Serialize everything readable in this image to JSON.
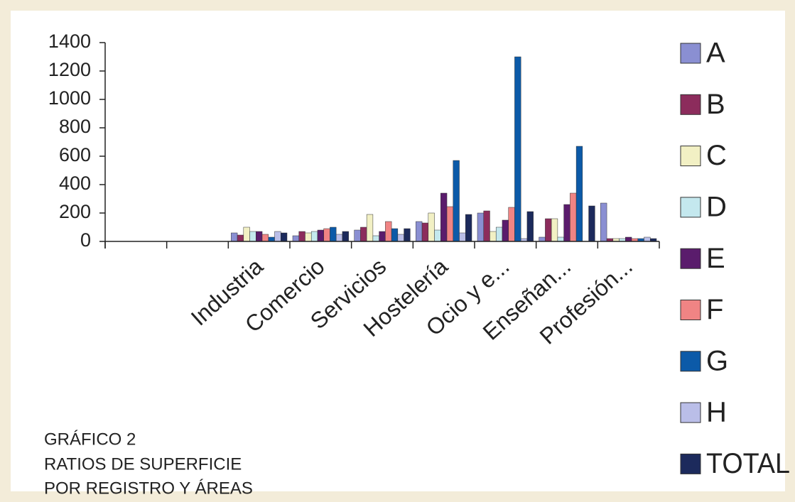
{
  "chart_data": {
    "type": "bar",
    "title": "GRÁFICO 2",
    "subtitle": [
      "RATIOS DE SUPERFICIE",
      "POR REGISTRO Y ÁREAS"
    ],
    "categories": [
      null,
      null,
      "Industria",
      "Comercio",
      "Servicios",
      "Hostelería",
      "Ocio y e...",
      "Enseñan...",
      "Profesión..."
    ],
    "series": [
      {
        "name": "A",
        "color": "#8a8fd2",
        "values": [
          null,
          null,
          60,
          40,
          80,
          140,
          200,
          30,
          270
        ]
      },
      {
        "name": "B",
        "color": "#8c2c5c",
        "values": [
          null,
          null,
          45,
          70,
          100,
          130,
          215,
          160,
          20
        ]
      },
      {
        "name": "C",
        "color": "#f2f0c4",
        "values": [
          null,
          null,
          100,
          60,
          190,
          200,
          70,
          160,
          20
        ]
      },
      {
        "name": "D",
        "color": "#c4e8ee",
        "values": [
          null,
          null,
          70,
          70,
          40,
          80,
          100,
          30,
          20
        ]
      },
      {
        "name": "E",
        "color": "#5a1c6c",
        "values": [
          null,
          null,
          70,
          80,
          70,
          340,
          150,
          260,
          30
        ]
      },
      {
        "name": "F",
        "color": "#f08484",
        "values": [
          null,
          null,
          50,
          90,
          140,
          245,
          240,
          340,
          20
        ]
      },
      {
        "name": "G",
        "color": "#0c5aa8",
        "values": [
          null,
          null,
          30,
          100,
          90,
          570,
          1300,
          670,
          20
        ]
      },
      {
        "name": "H",
        "color": "#babee8",
        "values": [
          null,
          null,
          70,
          50,
          50,
          60,
          20,
          0,
          30
        ]
      },
      {
        "name": "TOTAL",
        "color": "#1c2a5c",
        "values": [
          null,
          null,
          60,
          70,
          90,
          190,
          210,
          250,
          20
        ]
      }
    ],
    "ylim": [
      0,
      1400
    ],
    "yticks": [
      0,
      200,
      400,
      600,
      800,
      1000,
      1200,
      1400
    ],
    "grid": false,
    "legend": "right"
  }
}
